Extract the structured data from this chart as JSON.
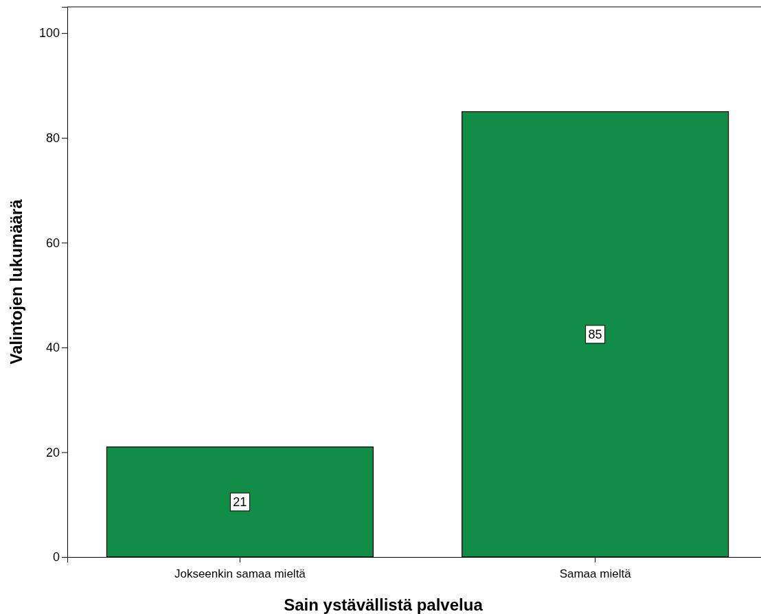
{
  "chart_data": {
    "type": "bar",
    "xlabel": "Sain ystävällistä palvelua",
    "ylabel": "Valintojen lukumäärä",
    "categories": [
      "Jokseenkin samaa mieltä",
      "Samaa mieltä"
    ],
    "values": [
      21,
      85
    ],
    "color": "#118d48",
    "ylim": [
      0,
      105
    ],
    "yticks": [
      0,
      20,
      40,
      60,
      80,
      100
    ],
    "data_labels": true
  }
}
